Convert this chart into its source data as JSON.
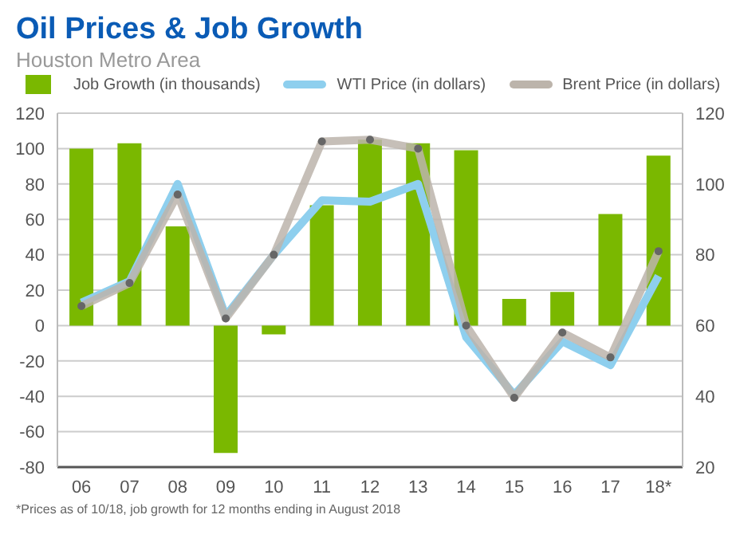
{
  "chart_data": {
    "type": "bar",
    "title": "Oil Prices & Job Growth",
    "subtitle": "Houston Metro Area",
    "categories": [
      "06",
      "07",
      "08",
      "09",
      "10",
      "11",
      "12",
      "13",
      "14",
      "15",
      "16",
      "17",
      "18*"
    ],
    "series": [
      {
        "name": "Job Growth (in thousands)",
        "color": "#7ab800",
        "values": [
          100,
          103,
          56,
          -72,
          -5,
          68,
          105,
          103,
          99,
          15,
          19,
          63,
          96
        ]
      },
      {
        "name": "WTI Price (in dollars)",
        "type": "line",
        "axis": "y2",
        "color": "#8ecfee",
        "marker": "none",
        "values": [
          66.5,
          72.5,
          100,
          62.7,
          80,
          95.4,
          95,
          100,
          56.7,
          40.4,
          55.5,
          48.8,
          74
        ]
      },
      {
        "name": "Brent Price (in dollars)",
        "type": "line",
        "axis": "y2",
        "color": "#bcb4ab",
        "marker": "circle",
        "values": [
          65.5,
          72,
          97,
          62,
          80,
          112,
          112.5,
          110,
          60,
          39.6,
          58,
          51,
          81
        ]
      }
    ],
    "ylim": [
      -80,
      120
    ],
    "yticks": [
      -80,
      -60,
      -40,
      -20,
      0,
      20,
      40,
      60,
      80,
      100,
      120
    ],
    "y2lim": [
      20,
      120
    ],
    "y2ticks": [
      20,
      40,
      60,
      80,
      100,
      120
    ],
    "grid": "y",
    "legend": "top",
    "annotations": [
      "*Prices as of 10/18, job growth for 12 months ending in August 2018"
    ]
  }
}
